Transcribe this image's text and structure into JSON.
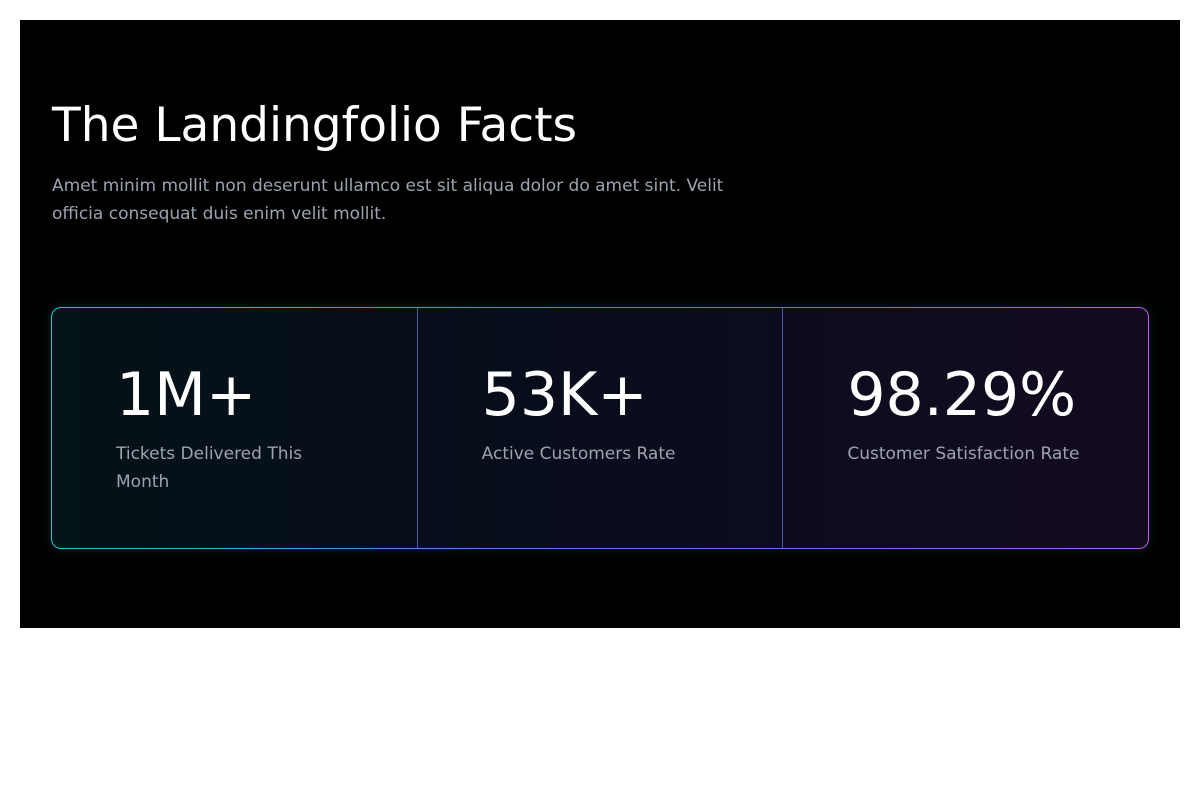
{
  "section": {
    "title": "The Landingfolio Facts",
    "subtitle": "Amet minim mollit non deserunt ullamco est sit aliqua dolor do amet sint. Velit officia consequat duis enim velit mollit."
  },
  "stats": [
    {
      "value": "1M+",
      "label": "Tickets Delivered This Month"
    },
    {
      "value": "53K+",
      "label": "Active Customers Rate"
    },
    {
      "value": "98.29%",
      "label": "Customer Satisfaction Rate"
    }
  ],
  "colors": {
    "background": "#000000",
    "title": "#ffffff",
    "muted_text": "#9ca3af",
    "border_gradient_start": "#1ec8d6",
    "border_gradient_end": "#b760ee"
  }
}
